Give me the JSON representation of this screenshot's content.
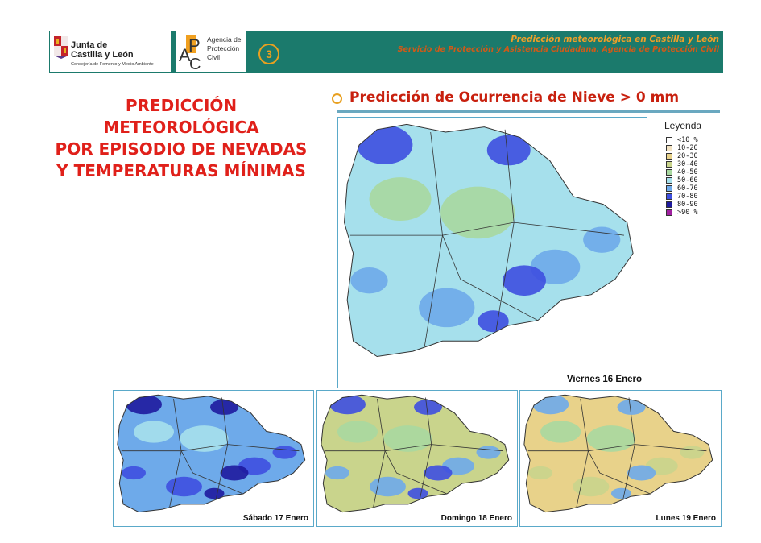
{
  "header": {
    "jcyl_logo": {
      "line1": "Junta de",
      "line2": "Castilla y León",
      "line3": "Consejería de Fomento y Medio Ambiente"
    },
    "apc_logo": {
      "line1": "Agencia de",
      "line2": "Protección",
      "line3": "Civil"
    },
    "slide_number": "3",
    "title_line1": "Predicción meteorológica en Castilla y León",
    "title_line2": "Servicio de Protección y Asistencia Ciudadana. Agencia de Protección Civil"
  },
  "main_title": [
    "PREDICCIÓN",
    "METEOROLÓGICA",
    "POR EPISODIO DE NEVADAS",
    "Y TEMPERATURAS MÍNIMAS"
  ],
  "map_section_title": "Predicción de Ocurrencia de Nieve > 0 mm",
  "legend": {
    "title": "Leyenda",
    "items": [
      {
        "label": "<10 %",
        "color": "#ffffff"
      },
      {
        "label": "10-20",
        "color": "#f3e4c4"
      },
      {
        "label": "20-30",
        "color": "#e8d28a"
      },
      {
        "label": "30-40",
        "color": "#c9d48c"
      },
      {
        "label": "40-50",
        "color": "#a8d8a0"
      },
      {
        "label": "50-60",
        "color": "#a6e0ec"
      },
      {
        "label": "60-70",
        "color": "#6eaaea"
      },
      {
        "label": "70-80",
        "color": "#3e4fe0"
      },
      {
        "label": "80-90",
        "color": "#1e1a9e"
      },
      {
        "label": ">90 %",
        "color": "#a020a0"
      }
    ]
  },
  "maps": [
    {
      "label": "Viernes 16 Enero",
      "dominant": "#a6e0ec",
      "accent": "#6eaaea",
      "dark": "#3e4fe0",
      "extra": "#a8d8a0"
    },
    {
      "label": "Sábado 17 Enero",
      "dominant": "#6eaaea",
      "accent": "#3e4fe0",
      "dark": "#1e1a9e",
      "extra": "#a6e0ec"
    },
    {
      "label": "Domingo 18 Enero",
      "dominant": "#c9d48c",
      "accent": "#6eaaea",
      "dark": "#3e4fe0",
      "extra": "#a8d8a0"
    },
    {
      "label": "Lunes 19 Enero",
      "dominant": "#e8d28a",
      "accent": "#c9d48c",
      "dark": "#6eaaea",
      "extra": "#a8d8a0"
    }
  ]
}
